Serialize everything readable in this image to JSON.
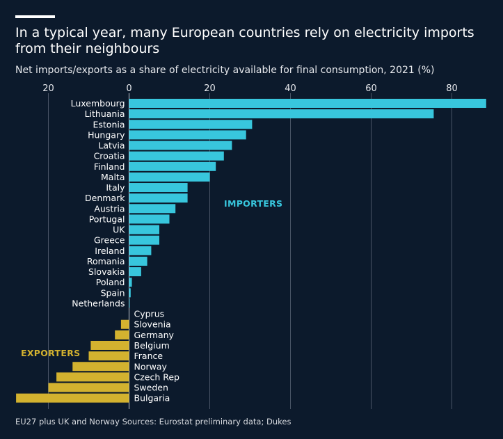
{
  "title": "In a typical year, many European countries rely on electricity imports from their neighbours",
  "subtitle": "Net imports/exports as a share of electricity available for final consumption, 2021 (%)",
  "footnote": "EU27 plus UK and Norway Sources: Eurostat preliminary data; Dukes",
  "colors": {
    "background": "#0c1a2c",
    "importers": "#38c6dd",
    "exporters": "#d3b22f",
    "gridline": "#4a5566",
    "text": "#ffffff"
  },
  "chart_data": {
    "type": "bar",
    "orientation": "horizontal",
    "xlim": [
      -27,
      88
    ],
    "x_ticks": [
      {
        "value": -20,
        "label": "20"
      },
      {
        "value": 0,
        "label": "0"
      },
      {
        "value": 20,
        "label": "20"
      },
      {
        "value": 40,
        "label": "40"
      },
      {
        "value": 60,
        "label": "60"
      },
      {
        "value": 80,
        "label": "80"
      }
    ],
    "grid": true,
    "annotations": [
      {
        "text": "IMPORTERS",
        "group": "importers"
      },
      {
        "text": "EXPORTERS",
        "group": "exporters"
      }
    ],
    "categories": [
      "Luxembourg",
      "Lithuania",
      "Estonia",
      "Hungary",
      "Latvia",
      "Croatia",
      "Finland",
      "Malta",
      "Italy",
      "Denmark",
      "Austria",
      "Portugal",
      "UK",
      "Greece",
      "Ireland",
      "Romania",
      "Slovakia",
      "Poland",
      "Spain",
      "Netherlands",
      "Cyprus",
      "Slovenia",
      "Germany",
      "Belgium",
      "France",
      "Norway",
      "Czech Rep",
      "Sweden",
      "Bulgaria"
    ],
    "values": [
      88.5,
      75.5,
      30.5,
      29.0,
      25.5,
      23.5,
      21.5,
      20.0,
      14.5,
      14.5,
      11.5,
      10.0,
      7.5,
      7.5,
      5.5,
      4.5,
      3.0,
      0.7,
      0.4,
      0.1,
      0.0,
      -2.0,
      -3.5,
      -9.5,
      -10.0,
      -14.0,
      -18.0,
      -20.0,
      -28.0
    ]
  }
}
